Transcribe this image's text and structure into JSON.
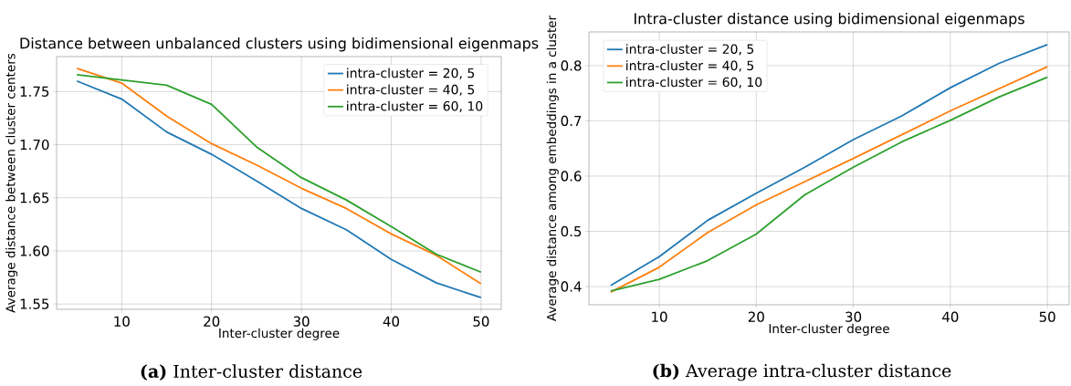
{
  "chart_data": [
    {
      "type": "line",
      "title": "Distance between unbalanced clusters using bidimensional eigenmaps",
      "xlabel": "Inter-cluster degree",
      "ylabel": "Average distance between cluster centers",
      "annotations": [
        "**(a)** Inter-cluster distance"
      ],
      "x": [
        5,
        10,
        15,
        20,
        25,
        30,
        35,
        40,
        45,
        50
      ],
      "xlim": [
        2.75,
        52.25
      ],
      "ylim": [
        1.545,
        1.783
      ],
      "xticks": [
        10,
        20,
        30,
        40,
        50
      ],
      "yticks": [
        1.55,
        {
          "value": 1.6,
          "label": "1.60"
        },
        1.65,
        {
          "value": 1.7,
          "label": "1.70"
        },
        1.75
      ],
      "grid": true,
      "legend": "top right",
      "series": [
        {
          "name": "intra-cluster = 20, 5",
          "color": "#1f77b4",
          "values": [
            1.76,
            1.743,
            1.712,
            1.691,
            1.666,
            1.64,
            1.62,
            1.592,
            1.57,
            1.556
          ]
        },
        {
          "name": "intra-cluster = 40, 5",
          "color": "#ff7f0e",
          "values": [
            1.772,
            1.758,
            1.727,
            1.701,
            1.681,
            1.659,
            1.64,
            1.616,
            1.596,
            1.569
          ]
        },
        {
          "name": "intra-cluster = 60, 10",
          "color": "#2ca02c",
          "values": [
            1.766,
            1.761,
            1.756,
            1.738,
            1.698,
            1.669,
            1.648,
            1.623,
            1.597,
            1.58
          ]
        }
      ]
    },
    {
      "type": "line",
      "title": "Intra-cluster distance using bidimensional eigenmaps",
      "xlabel": "Inter-cluster degree",
      "ylabel": "Average distance among embeddings in a cluster",
      "annotations": [
        "**(b)** Average intra-cluster distance"
      ],
      "x": [
        5,
        10,
        15,
        20,
        25,
        30,
        35,
        40,
        45,
        50
      ],
      "xlim": [
        2.75,
        52.25
      ],
      "ylim": [
        0.367,
        0.861
      ],
      "xticks": [
        10,
        20,
        30,
        40,
        50
      ],
      "yticks": [
        0.4,
        0.5,
        0.6,
        0.7,
        0.8
      ],
      "grid": true,
      "legend": "top left",
      "series": [
        {
          "name": "intra-cluster = 20, 5",
          "color": "#1f77b4",
          "values": [
            0.402,
            0.454,
            0.52,
            0.569,
            0.616,
            0.666,
            0.709,
            0.76,
            0.804,
            0.838
          ]
        },
        {
          "name": "intra-cluster = 40, 5",
          "color": "#ff7f0e",
          "values": [
            0.39,
            0.435,
            0.498,
            0.548,
            0.59,
            0.632,
            0.675,
            0.718,
            0.758,
            0.798
          ]
        },
        {
          "name": "intra-cluster = 60, 10",
          "color": "#2ca02c",
          "values": [
            0.392,
            0.413,
            0.447,
            0.495,
            0.566,
            0.616,
            0.662,
            0.701,
            0.743,
            0.779
          ]
        }
      ]
    }
  ]
}
